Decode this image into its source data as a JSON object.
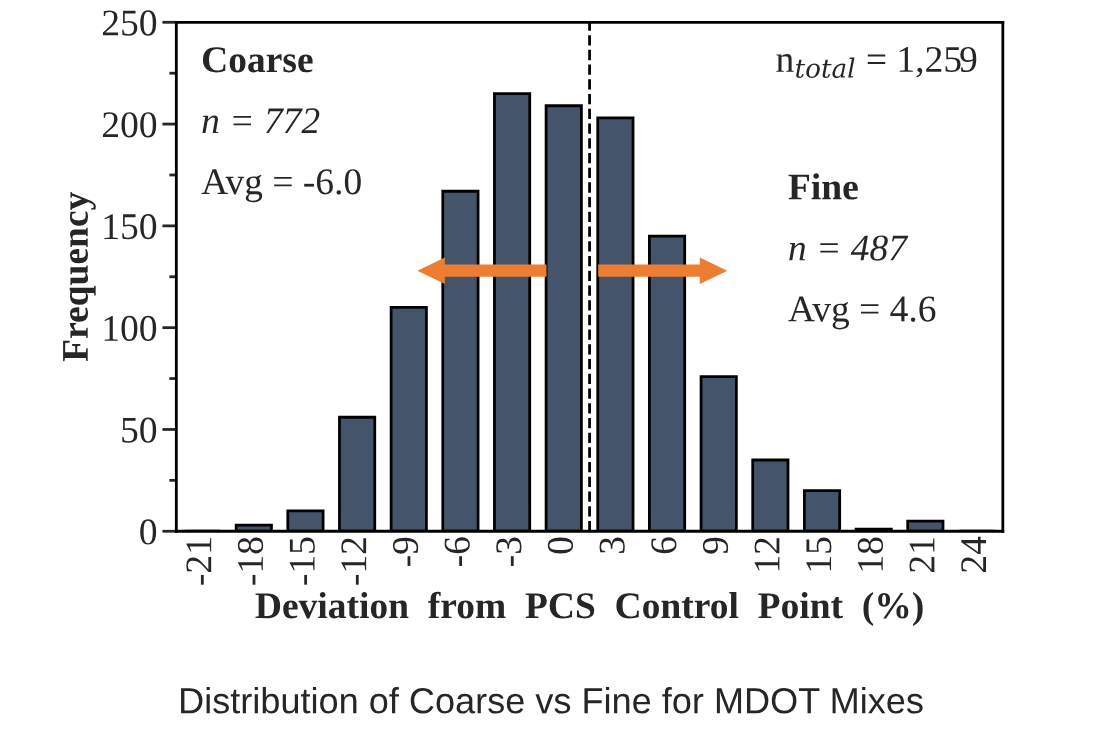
{
  "chart_data": {
    "type": "bar",
    "title": "Distribution of Coarse vs Fine for MDOT Mixes",
    "xlabel": "Deviation  from  PCS  Control  Point  (%)",
    "ylabel": "Frequency",
    "x": [
      -21,
      -18,
      -15,
      -12,
      -9,
      -6,
      -3,
      0,
      3,
      6,
      9,
      12,
      15,
      18,
      21,
      24
    ],
    "values": [
      0,
      3,
      10,
      56,
      110,
      167,
      215,
      209,
      203,
      145,
      76,
      35,
      20,
      1,
      5,
      0
    ],
    "color": "#44546a",
    "xlim": [
      -22.5,
      25.5
    ],
    "xticks": [
      -21,
      -18,
      -15,
      -12,
      -9,
      -6,
      -3,
      0,
      3,
      6,
      9,
      12,
      15,
      18,
      21,
      24
    ],
    "ylim": [
      0,
      250
    ],
    "yticks": [
      0,
      50,
      100,
      150,
      200,
      250
    ],
    "grid": false,
    "legend": false,
    "ref_lines": [
      {
        "axis": "x",
        "value": 1.5,
        "label": null,
        "color": "#000000",
        "line_style": "dashed"
      }
    ],
    "annotations": [
      "Coarse",
      "n = 772",
      "Avg = -6.0",
      "Fine",
      "n = 487",
      "Avg = 4.6",
      "n$_{total}$ = 1,259"
    ]
  }
}
